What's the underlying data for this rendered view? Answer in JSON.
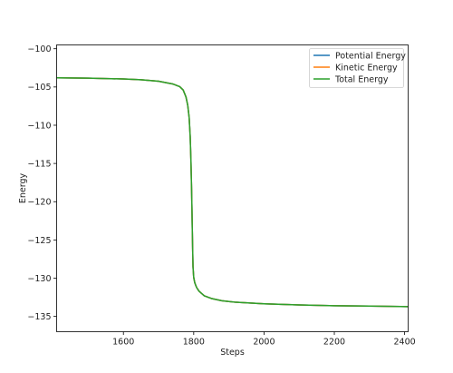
{
  "chart_data": {
    "type": "line",
    "title": "",
    "xlabel": "Steps",
    "ylabel": "Energy",
    "xlim": [
      1410,
      2410
    ],
    "ylim": [
      -137,
      -99.5
    ],
    "xticks": [
      1600,
      1800,
      2000,
      2200,
      2400
    ],
    "yticks": [
      -100,
      -105,
      -110,
      -115,
      -120,
      -125,
      -130,
      -135
    ],
    "grid": false,
    "legend_position": "top-right",
    "series": [
      {
        "name": "Potential Energy",
        "color": "#1f77b4",
        "x": [
          1410,
          1500,
          1600,
          1650,
          1700,
          1740,
          1760,
          1770,
          1778,
          1783,
          1787,
          1790,
          1792,
          1794,
          1795,
          1796,
          1797,
          1798,
          1800,
          1803,
          1808,
          1815,
          1830,
          1850,
          1880,
          1920,
          2000,
          2100,
          2200,
          2300,
          2410
        ],
        "y": [
          -103.8,
          -103.85,
          -103.95,
          -104.05,
          -104.25,
          -104.6,
          -104.95,
          -105.4,
          -106.3,
          -107.4,
          -109.0,
          -111.5,
          -114.5,
          -118.5,
          -121.0,
          -123.8,
          -126.2,
          -128.5,
          -129.9,
          -130.6,
          -131.2,
          -131.7,
          -132.3,
          -132.65,
          -132.95,
          -133.15,
          -133.35,
          -133.5,
          -133.6,
          -133.65,
          -133.72
        ]
      },
      {
        "name": "Kinetic Energy",
        "color": "#ff7f0e",
        "x": [
          1410,
          1500,
          1600,
          1650,
          1700,
          1740,
          1760,
          1770,
          1778,
          1783,
          1787,
          1790,
          1792,
          1794,
          1795,
          1796,
          1797,
          1798,
          1800,
          1803,
          1808,
          1815,
          1830,
          1850,
          1880,
          1920,
          2000,
          2100,
          2200,
          2300,
          2410
        ],
        "y": [
          -103.8,
          -103.85,
          -103.95,
          -104.05,
          -104.25,
          -104.6,
          -104.95,
          -105.4,
          -106.3,
          -107.4,
          -109.0,
          -111.5,
          -114.5,
          -118.5,
          -121.0,
          -123.8,
          -126.2,
          -128.5,
          -129.9,
          -130.6,
          -131.2,
          -131.7,
          -132.3,
          -132.65,
          -132.95,
          -133.15,
          -133.35,
          -133.5,
          -133.6,
          -133.65,
          -133.72
        ]
      },
      {
        "name": "Total Energy",
        "color": "#2ca02c",
        "x": [
          1410,
          1500,
          1600,
          1650,
          1700,
          1740,
          1760,
          1770,
          1778,
          1783,
          1787,
          1790,
          1792,
          1794,
          1795,
          1796,
          1797,
          1798,
          1800,
          1803,
          1808,
          1815,
          1830,
          1850,
          1880,
          1920,
          2000,
          2100,
          2200,
          2300,
          2410
        ],
        "y": [
          -103.8,
          -103.85,
          -103.95,
          -104.05,
          -104.25,
          -104.6,
          -104.95,
          -105.4,
          -106.3,
          -107.4,
          -109.0,
          -111.5,
          -114.5,
          -118.5,
          -121.0,
          -123.8,
          -126.2,
          -128.5,
          -129.9,
          -130.6,
          -131.2,
          -131.7,
          -132.3,
          -132.65,
          -132.95,
          -133.15,
          -133.35,
          -133.5,
          -133.6,
          -133.65,
          -133.72
        ]
      }
    ]
  }
}
